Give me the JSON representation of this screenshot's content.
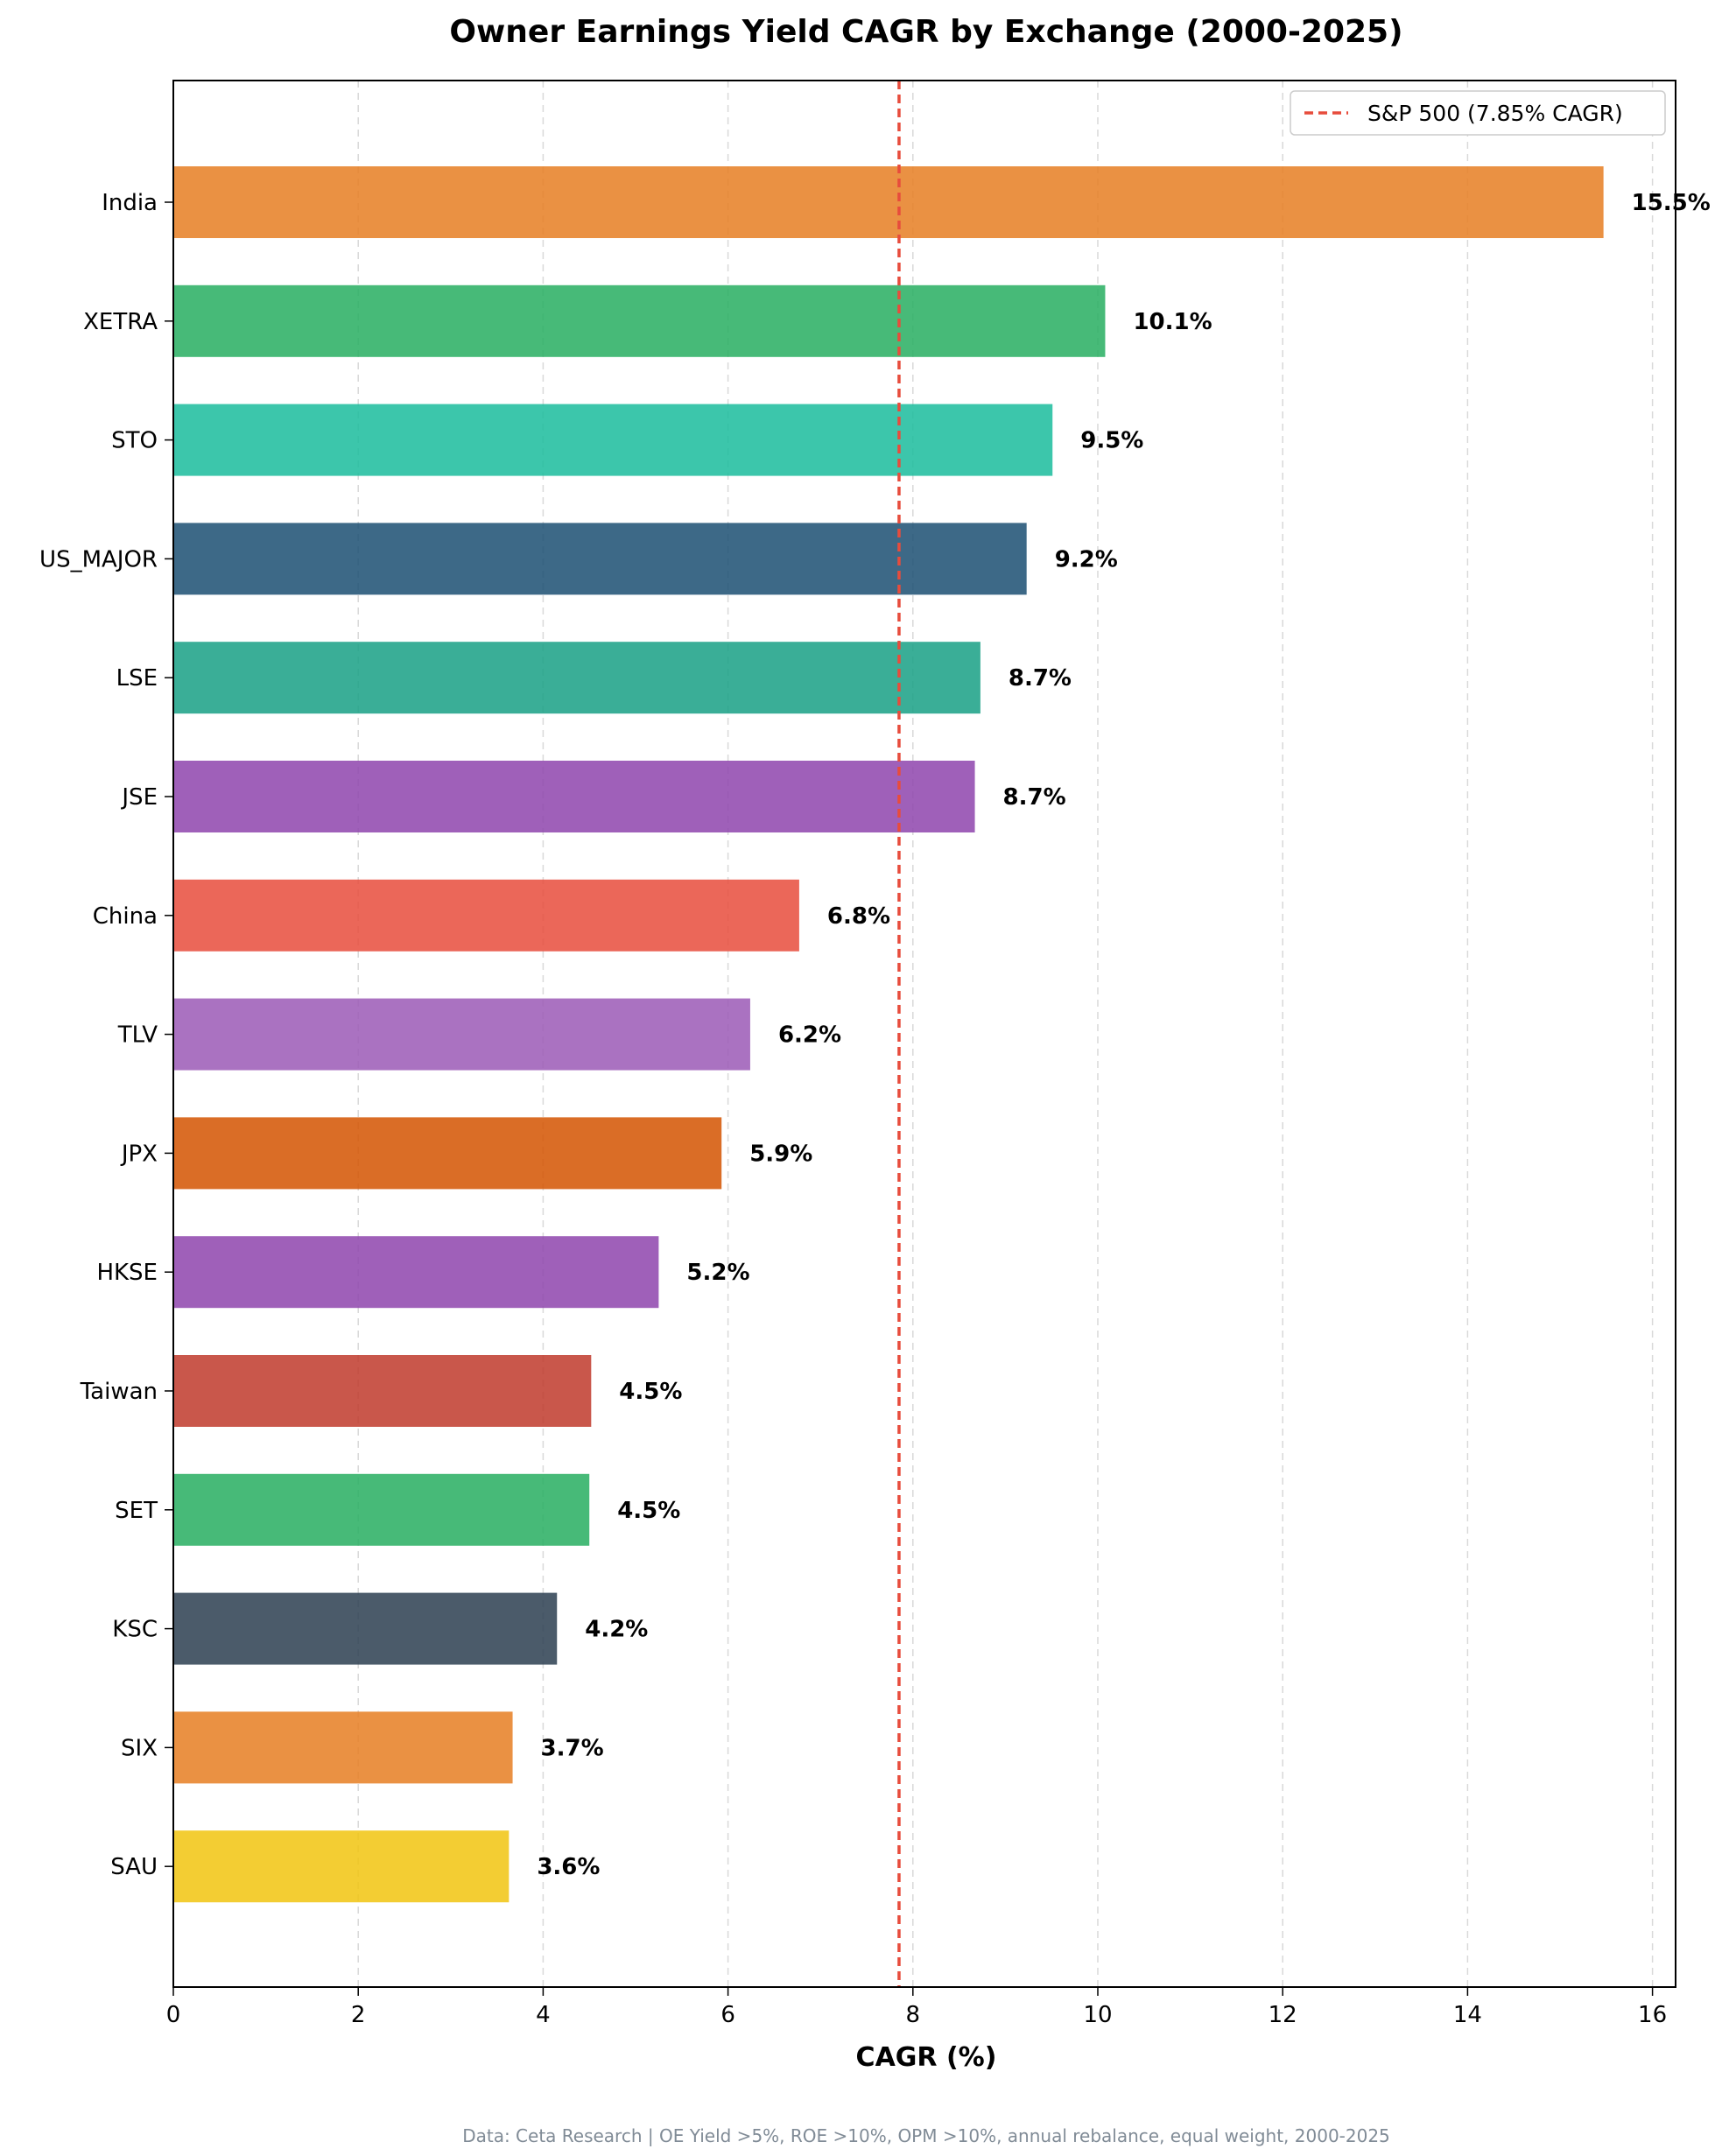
{
  "chart_data": {
    "type": "bar",
    "orientation": "horizontal",
    "title": "Owner Earnings Yield CAGR by Exchange (2000-2025)",
    "xlabel": "CAGR (%)",
    "ylabel": "",
    "xlim": [
      0,
      16.25
    ],
    "xticks": [
      0,
      2,
      4,
      6,
      8,
      10,
      12,
      14,
      16
    ],
    "grid": "x, dashed",
    "categories": [
      "India",
      "XETRA",
      "STO",
      "US_MAJOR",
      "LSE",
      "JSE",
      "China",
      "TLV",
      "JPX",
      "HKSE",
      "Taiwan",
      "SET",
      "KSC",
      "SIX",
      "SAU"
    ],
    "values": [
      15.47,
      10.08,
      9.51,
      9.23,
      8.73,
      8.67,
      6.77,
      6.24,
      5.93,
      5.25,
      4.52,
      4.5,
      4.15,
      3.67,
      3.63
    ],
    "data_labels": [
      "15.5%",
      "10.1%",
      "9.5%",
      "9.2%",
      "8.7%",
      "8.7%",
      "6.8%",
      "6.2%",
      "5.9%",
      "5.2%",
      "4.5%",
      "4.5%",
      "4.2%",
      "3.7%",
      "3.6%"
    ],
    "colors": [
      "#e67e22",
      "#27ae60",
      "#1abc9c",
      "#1b4f72",
      "#17a085",
      "#8e44ad",
      "#e74c3c",
      "#9b59b6",
      "#d35400",
      "#8e44ad",
      "#c0392b",
      "#27ae60",
      "#2c3e50",
      "#e67e22",
      "#f1c40f"
    ],
    "reference_line": {
      "value": 7.85,
      "label": "S&P 500 (7.85% CAGR)",
      "color": "#e74c3c",
      "style": "dashed"
    },
    "legend_placement": "top-right",
    "footer": "Data: Ceta Research | OE Yield >5%, ROE >10%, OPM >10%, annual rebalance, equal weight, 2000-2025"
  }
}
